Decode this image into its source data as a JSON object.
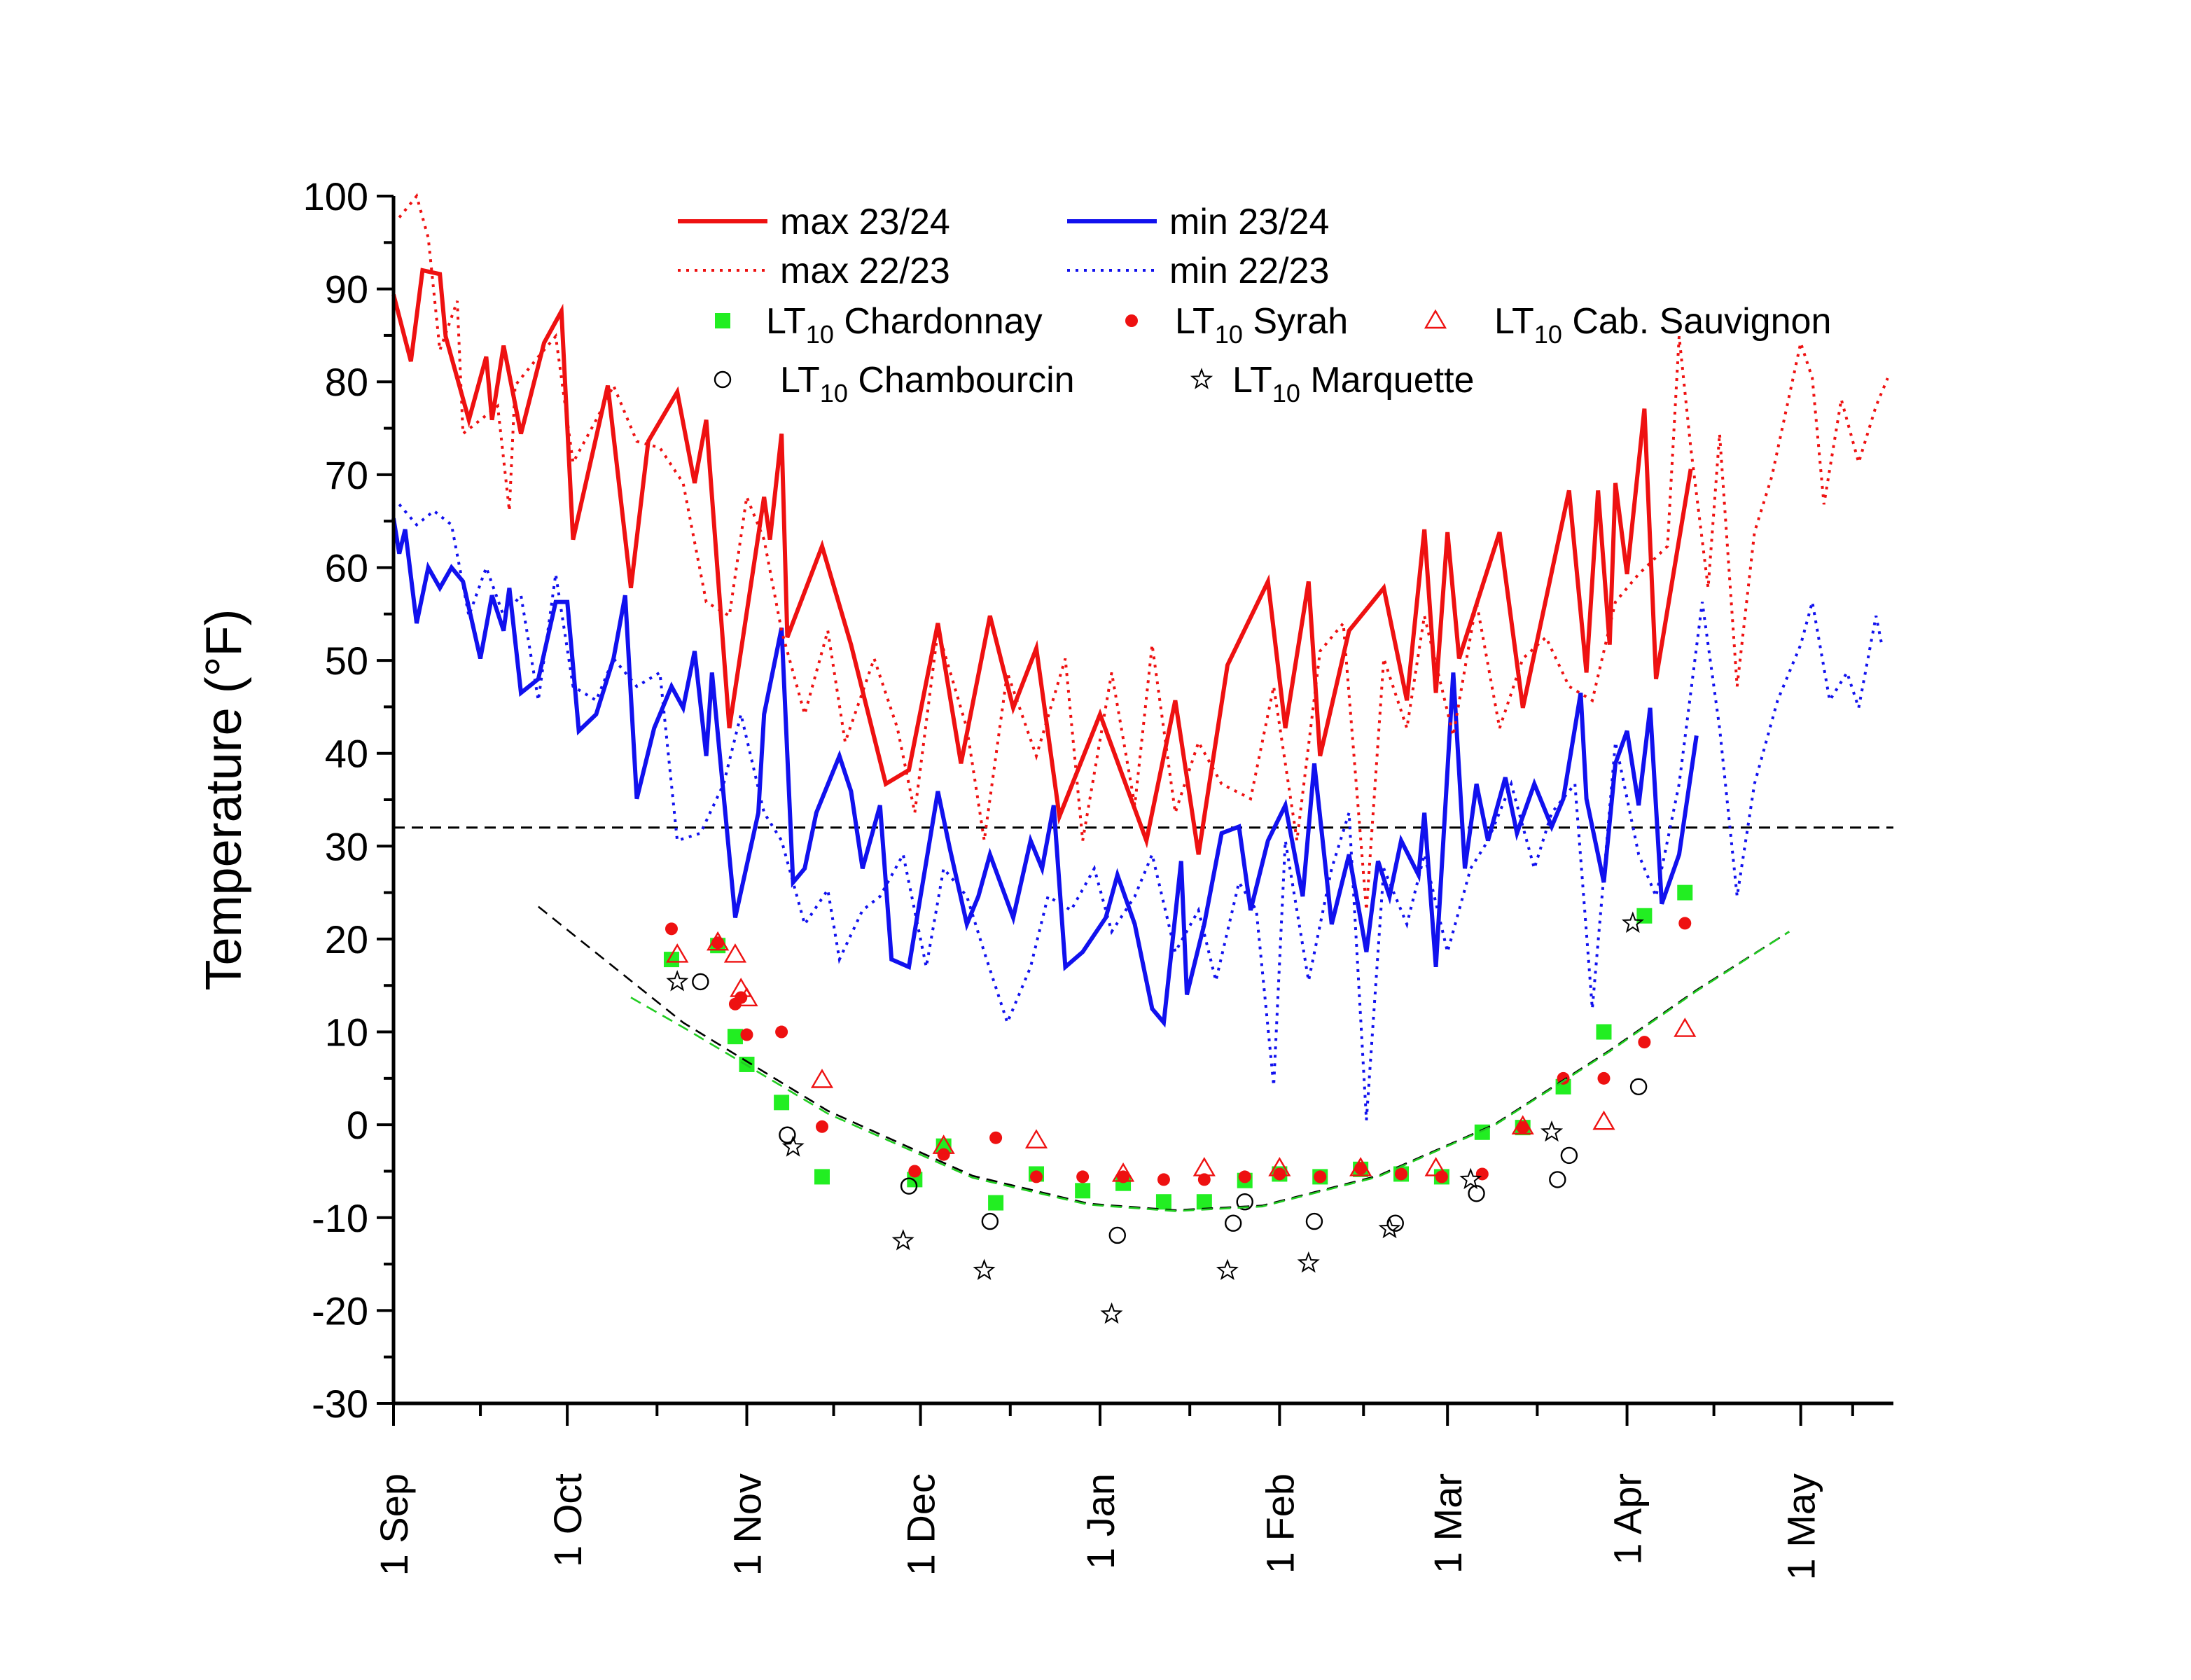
{
  "chart_data": {
    "type": "line",
    "y_label": "Temperature (°F)",
    "xlim": [
      0,
      259
    ],
    "ylim": [
      -30,
      100
    ],
    "xticks": [
      {
        "value": 0,
        "label": "1 Sep"
      },
      {
        "value": 30,
        "label": "1 Oct"
      },
      {
        "value": 61,
        "label": "1 Nov"
      },
      {
        "value": 91,
        "label": "1 Dec"
      },
      {
        "value": 122,
        "label": "1 Jan"
      },
      {
        "value": 153,
        "label": "1 Feb"
      },
      {
        "value": 182,
        "label": "1 Mar"
      },
      {
        "value": 213,
        "label": "1 Apr"
      },
      {
        "value": 243,
        "label": "1 May"
      }
    ],
    "yticks": [
      -30,
      -20,
      -10,
      0,
      10,
      20,
      30,
      40,
      50,
      60,
      70,
      80,
      90,
      100
    ],
    "reference_line": {
      "value": 32,
      "color": "#000000",
      "style": "dashed"
    },
    "series": [
      {
        "name": "max 23/24",
        "color": "#ee1111",
        "style": "solid",
        "x": [
          0,
          3,
          5,
          8,
          9,
          13,
          16,
          17,
          19,
          22,
          26,
          29,
          31,
          37,
          41,
          44,
          49,
          52,
          54,
          58,
          64,
          65,
          67,
          68,
          74,
          79,
          85,
          89,
          94,
          98,
          103,
          107,
          111,
          115,
          122,
          130,
          135,
          139,
          144,
          151,
          154,
          158,
          160,
          165,
          171,
          175,
          178,
          180,
          182,
          184,
          191,
          195,
          203,
          206,
          208,
          210,
          211,
          213,
          216,
          218,
          224
        ],
        "values": [
          89.4,
          82.2,
          92.0,
          91.6,
          84.9,
          75.9,
          82.7,
          75.9,
          83.9,
          74.4,
          84.2,
          87.6,
          63.0,
          79.6,
          57.8,
          73.6,
          78.9,
          69.1,
          75.9,
          42.7,
          67.6,
          63.0,
          74.4,
          52.5,
          62.3,
          51.7,
          36.7,
          38.2,
          54.0,
          38.9,
          54.8,
          44.9,
          51.3,
          33.2,
          44.2,
          30.6,
          45.7,
          29.1,
          49.5,
          58.5,
          42.7,
          58.5,
          39.7,
          53.2,
          57.8,
          45.7,
          64.1,
          46.5,
          63.8,
          50.2,
          63.8,
          44.9,
          68.3,
          48.7,
          68.3,
          51.7,
          69.1,
          59.3,
          77.1,
          48.0,
          70.6
        ]
      },
      {
        "name": "min 23/24",
        "color": "#1111ee",
        "style": "solid",
        "x": [
          0,
          1,
          2,
          4,
          6,
          8,
          10,
          12,
          15,
          17,
          19,
          20,
          22,
          25,
          28,
          30,
          32,
          35,
          38,
          40,
          42,
          45,
          48,
          50,
          52,
          54,
          55,
          59,
          63,
          64,
          67,
          69,
          71,
          73,
          77,
          79,
          81,
          84,
          86,
          89,
          91,
          94,
          96,
          99,
          101,
          103,
          107,
          110,
          112,
          114,
          116,
          119,
          123,
          125,
          128,
          131,
          133,
          136,
          137,
          140,
          143,
          146,
          148,
          151,
          154,
          157,
          159,
          162,
          165,
          168,
          170,
          172,
          174,
          177,
          178,
          180,
          183,
          185,
          187,
          189,
          192,
          194,
          197,
          200,
          202,
          205,
          206,
          209,
          211,
          213,
          215,
          217,
          219,
          222,
          225
        ],
        "values": [
          65.3,
          61.5,
          64.1,
          54.0,
          60.0,
          57.8,
          60.0,
          58.5,
          50.2,
          57.0,
          53.2,
          57.8,
          46.5,
          48.0,
          56.3,
          56.3,
          42.4,
          44.2,
          50.2,
          57.0,
          35.1,
          42.7,
          47.2,
          44.9,
          51.0,
          39.7,
          48.7,
          22.3,
          33.6,
          44.2,
          53.5,
          26.1,
          27.6,
          33.6,
          39.7,
          35.9,
          27.6,
          34.4,
          17.8,
          17.0,
          24.6,
          35.9,
          29.9,
          21.6,
          24.6,
          29.1,
          22.3,
          30.6,
          27.6,
          34.4,
          17.0,
          18.6,
          22.3,
          26.9,
          21.6,
          12.5,
          11.0,
          28.4,
          14.0,
          21.6,
          31.4,
          32.1,
          23.1,
          30.6,
          34.4,
          24.6,
          38.9,
          21.6,
          29.1,
          18.6,
          28.4,
          24.6,
          30.6,
          26.9,
          33.6,
          17.0,
          48.7,
          27.6,
          36.7,
          30.6,
          37.4,
          31.4,
          36.7,
          32.1,
          35.1,
          46.5,
          35.1,
          26.1,
          38.9,
          42.4,
          34.4,
          44.9,
          23.8,
          29.1,
          41.9
        ]
      },
      {
        "name": "max 22/23",
        "color": "#ee1111",
        "style": "dotted",
        "x": [
          1,
          4,
          6,
          8,
          11,
          12,
          15,
          18,
          20,
          21,
          25,
          28,
          31,
          35,
          38,
          42,
          46,
          50,
          54,
          58,
          61,
          64,
          67,
          71,
          75,
          78,
          83,
          87,
          90,
          94,
          99,
          102,
          106,
          111,
          116,
          119,
          124,
          128,
          131,
          135,
          139,
          143,
          148,
          152,
          156,
          160,
          164,
          168,
          171,
          175,
          178,
          183,
          187,
          191,
          195,
          199,
          203,
          207,
          211,
          215,
          220,
          222,
          224,
          227,
          229,
          232,
          235,
          238,
          243,
          245,
          247,
          250,
          253,
          256,
          258
        ],
        "values": [
          97.7,
          100,
          95.5,
          83.4,
          88.7,
          74.4,
          75.9,
          77.4,
          66.1,
          79.6,
          82.7,
          84.9,
          71.3,
          75.9,
          79.6,
          73.6,
          72.9,
          69.1,
          56.3,
          54.8,
          67.6,
          63.0,
          53.2,
          44.2,
          53.2,
          41.2,
          50.2,
          42.7,
          33.6,
          53.2,
          42.7,
          30.6,
          48.7,
          39.7,
          50.2,
          30.6,
          48.7,
          34.4,
          51.7,
          33.6,
          41.2,
          36.7,
          35.1,
          47.2,
          30.6,
          51.0,
          54.0,
          23.1,
          50.2,
          42.7,
          54.8,
          41.9,
          56.3,
          42.7,
          50.2,
          52.5,
          47.2,
          45.7,
          56.3,
          59.3,
          62.3,
          84.9,
          72.9,
          57.8,
          74.4,
          47.2,
          63.8,
          69.8,
          84.2,
          80.4,
          66.8,
          78.1,
          71.3,
          77.4,
          80.4
        ]
      },
      {
        "name": "min 22/23",
        "color": "#1111ee",
        "style": "dotted",
        "x": [
          1,
          4,
          7,
          10,
          13,
          16,
          19,
          22,
          25,
          28,
          31,
          35,
          38,
          42,
          46,
          49,
          53,
          57,
          60,
          64,
          67,
          71,
          75,
          77,
          81,
          84,
          88,
          92,
          95,
          99,
          102,
          106,
          110,
          113,
          117,
          121,
          124,
          128,
          131,
          135,
          139,
          142,
          146,
          149,
          152,
          154,
          158,
          162,
          165,
          168,
          171,
          175,
          178,
          182,
          186,
          189,
          193,
          197,
          200,
          204,
          207,
          211,
          215,
          218,
          222,
          226,
          229,
          232,
          235,
          239,
          243,
          245,
          248,
          251,
          253,
          256,
          257
        ],
        "values": [
          66.8,
          64.6,
          66.1,
          64.6,
          54.8,
          60.0,
          54.8,
          57.0,
          45.7,
          59.3,
          47.2,
          45.7,
          50.2,
          47.2,
          48.7,
          30.6,
          31.4,
          36.7,
          44.2,
          33.6,
          30.6,
          21.6,
          25.3,
          17.8,
          23.1,
          24.6,
          29.1,
          17.0,
          27.6,
          24.6,
          18.6,
          11.0,
          17.0,
          24.6,
          23.1,
          27.6,
          20.8,
          24.6,
          29.1,
          18.6,
          23.1,
          15.5,
          26.1,
          23.1,
          4.2,
          30.6,
          15.5,
          27.6,
          33.6,
          0.5,
          27.6,
          21.6,
          29.1,
          18.6,
          27.6,
          30.6,
          36.7,
          27.6,
          33.6,
          36.7,
          12.5,
          41.2,
          29.1,
          24.6,
          36.7,
          56.3,
          42.7,
          24.6,
          36.7,
          45.7,
          51.7,
          56.3,
          45.7,
          48.7,
          44.9,
          54.8,
          51.7
        ]
      },
      {
        "name": "LT10 Chardonnay",
        "color": "#22ee22",
        "style": "square",
        "x": [
          48,
          56,
          59,
          61,
          67,
          74,
          90,
          95,
          104,
          111,
          119,
          126,
          133,
          140,
          147,
          153,
          160,
          167,
          174,
          181,
          188,
          195,
          202,
          209,
          216,
          223
        ],
        "values": [
          17.8,
          19.3,
          9.5,
          6.5,
          2.4,
          -5.6,
          -5.9,
          -2.3,
          -8.4,
          -5.3,
          -7.1,
          -6.3,
          -8.3,
          -8.3,
          -6.0,
          -5.3,
          -5.6,
          -4.8,
          -5.3,
          -5.6,
          -0.8,
          -0.3,
          4.1,
          10.0,
          22.5,
          25.0
        ]
      },
      {
        "name": "LT10 Syrah",
        "color": "#ee1111",
        "style": "dot",
        "x": [
          48,
          56,
          59,
          60,
          61,
          67,
          74,
          90,
          95,
          104,
          111,
          119,
          126,
          133,
          140,
          147,
          153,
          160,
          167,
          174,
          181,
          188,
          195,
          202,
          209,
          216,
          223
        ],
        "values": [
          21.1,
          19.6,
          13.0,
          13.7,
          9.7,
          10.0,
          -0.2,
          -5.0,
          -3.2,
          -1.4,
          -5.6,
          -5.6,
          -5.6,
          -5.9,
          -5.9,
          -5.6,
          -5.3,
          -5.6,
          -4.7,
          -5.3,
          -5.6,
          -5.3,
          -0.3,
          5.0,
          5.0,
          8.9,
          21.7
        ]
      },
      {
        "name": "LT10 Cab. Sauvignon",
        "color": "#ee1111",
        "style": "triangle",
        "x": [
          49,
          56,
          59,
          60,
          61,
          74,
          95,
          111,
          126,
          140,
          153,
          167,
          180,
          195,
          209,
          223
        ],
        "values": [
          18.3,
          19.6,
          18.3,
          14.6,
          13.6,
          4.8,
          -2.3,
          -1.7,
          -5.3,
          -4.7,
          -4.7,
          -4.7,
          -4.7,
          -0.2,
          0.3,
          10.3
        ]
      },
      {
        "name": "LT10 Chambourcin",
        "color": "#000000",
        "style": "circle",
        "x": [
          53,
          68,
          89,
          103,
          125,
          145,
          147,
          159,
          173,
          187,
          201,
          203,
          215
        ],
        "values": [
          15.4,
          -1.1,
          -6.6,
          -10.4,
          -11.9,
          -10.6,
          -8.3,
          -10.4,
          -10.6,
          -7.4,
          -5.9,
          -3.3,
          4.1
        ]
      },
      {
        "name": "LT10 Marquette",
        "color": "#000000",
        "style": "star",
        "x": [
          49,
          69,
          88,
          102,
          124,
          144,
          158,
          172,
          186,
          200,
          214
        ],
        "values": [
          15.4,
          -2.4,
          -12.5,
          -15.7,
          -20.4,
          -15.7,
          -14.9,
          -11.2,
          -5.9,
          -0.8,
          21.7
        ]
      },
      {
        "color": "#000000",
        "style": "dashed",
        "x": [
          25,
          50,
          75,
          100,
          120,
          135,
          150,
          170,
          190,
          210,
          225,
          241
        ],
        "values": [
          23.5,
          11.0,
          1.5,
          -5.5,
          -8.5,
          -9.2,
          -8.7,
          -5.5,
          0.0,
          8.0,
          14.5,
          20.8
        ]
      },
      {
        "color": "#22cc22",
        "style": "dashed",
        "x": [
          41,
          50,
          75,
          100,
          120,
          135,
          150,
          170,
          190,
          210,
          225,
          241
        ],
        "values": [
          13.7,
          10.5,
          1.2,
          -5.7,
          -8.6,
          -9.3,
          -8.8,
          -5.6,
          -0.1,
          7.9,
          14.4,
          20.8
        ]
      }
    ]
  }
}
